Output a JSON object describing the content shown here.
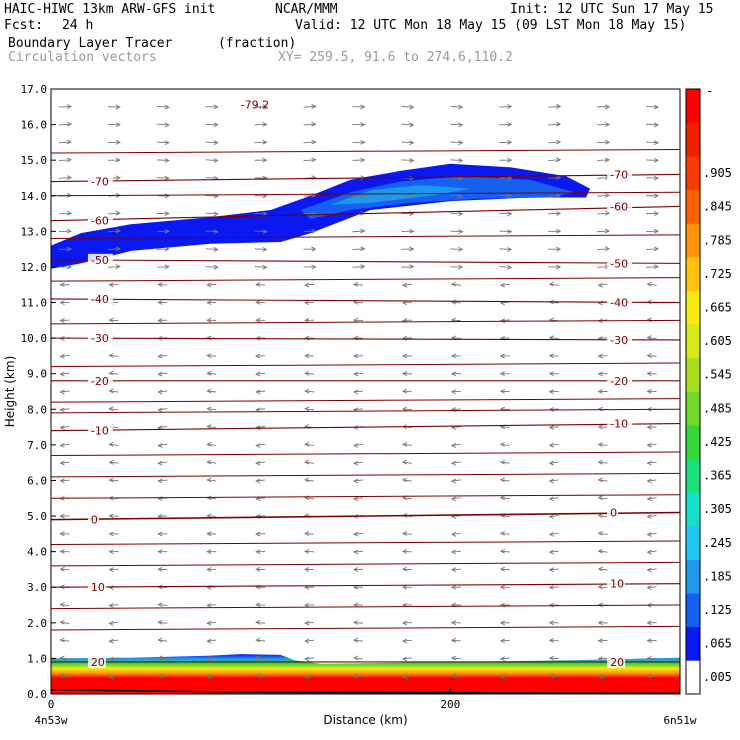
{
  "header": {
    "model": "HAIC-HIWC 13km ARW-GFS init",
    "org": "NCAR/MMM",
    "init": "Init: 12 UTC Sun 17 May 15",
    "fcst_label": "Fcst:",
    "fcst_value": "24 h",
    "valid": "Valid: 12 UTC Mon 18 May 15 (09 LST Mon 18 May 15)",
    "field_name": "Boundary Layer Tracer",
    "field_unit": "(fraction)",
    "vector_label": "Circulation vectors",
    "xy_range": "XY= 259.5, 91.6 to 274.6,110.2"
  },
  "chart_data": {
    "type": "heatmap",
    "ylabel": "Height (km)",
    "xlabel": "Distance (km)",
    "xlim": [
      0,
      315
    ],
    "ylim": [
      0,
      17
    ],
    "y_ticks": [
      "0.0",
      "1.0",
      "2.0",
      "3.0",
      "4.0",
      "5.0",
      "6.0",
      "7.0",
      "8.0",
      "9.0",
      "10.0",
      "11.0",
      "12.0",
      "13.0",
      "14.0",
      "15.0",
      "16.0",
      "17.0"
    ],
    "x_ticks": [
      {
        "value": 0,
        "label": "0"
      },
      {
        "value": 200,
        "label": "200"
      }
    ],
    "x_endpoints": {
      "left": "4n53w",
      "right": "6n51w"
    },
    "temperature_contours": [
      {
        "level": -70,
        "z_left": 14.4,
        "z_right": 14.6,
        "label": "-70"
      },
      {
        "level": -60,
        "z_left": 13.3,
        "z_right": 13.7,
        "label": "-60"
      },
      {
        "level": -50,
        "z_left": 12.2,
        "z_right": 12.1,
        "label": "-50"
      },
      {
        "level": -40,
        "z_left": 11.1,
        "z_right": 11.0,
        "label": "-40"
      },
      {
        "level": -30,
        "z_left": 10.0,
        "z_right": 9.95,
        "label": "-30"
      },
      {
        "level": -20,
        "z_left": 8.8,
        "z_right": 8.8,
        "label": "-20"
      },
      {
        "level": -10,
        "z_left": 7.4,
        "z_right": 7.6,
        "label": "-10"
      },
      {
        "level": 0,
        "z_left": 4.9,
        "z_right": 5.1,
        "label": "0"
      },
      {
        "level": 10,
        "z_left": 3.0,
        "z_right": 3.1,
        "label": "10"
      },
      {
        "level": 20,
        "z_left": 0.9,
        "z_right": 0.9,
        "label": "20"
      }
    ],
    "extra_contours": [
      15.2,
      14.0,
      12.8,
      11.6,
      10.4,
      9.2,
      8.2,
      7.9,
      6.7,
      6.1,
      5.5,
      4.2,
      3.6,
      2.4,
      1.8
    ],
    "min_label": "-79.2",
    "colorbar": {
      "labels": [
        ".005",
        ".065",
        ".125",
        ".185",
        ".245",
        ".305",
        ".365",
        ".425",
        ".485",
        ".545",
        ".605",
        ".665",
        ".725",
        ".785",
        ".845",
        ".905"
      ],
      "colors": [
        "#ffffff",
        "#0a18f2",
        "#1560f0",
        "#1e98ee",
        "#22c8f0",
        "#12e0c8",
        "#1ce07c",
        "#36d838",
        "#70d82a",
        "#a8e020",
        "#d6e818",
        "#f6ea10",
        "#fec20a",
        "#fe9406",
        "#fe6004",
        "#f83a02",
        "#f02000",
        "#ff0000"
      ],
      "top_label": "-"
    }
  }
}
